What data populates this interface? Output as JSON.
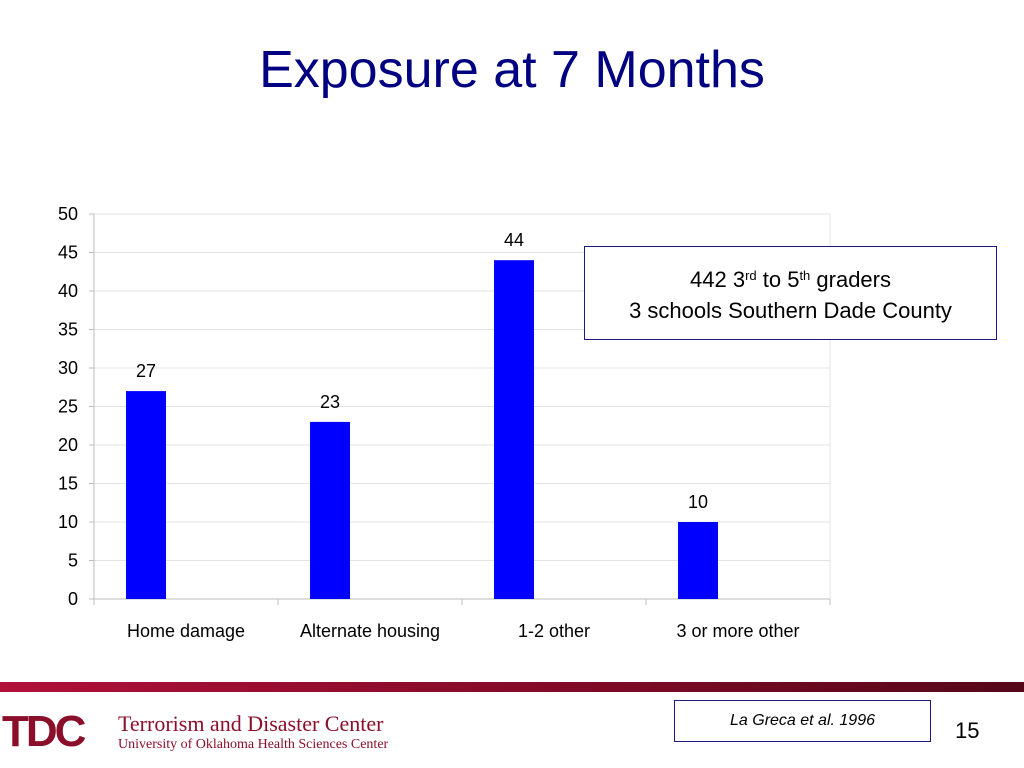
{
  "slide": {
    "title": "Exposure at 7 Months",
    "annotation": {
      "line1_num": "442 3",
      "line1_sup1": "rd",
      "line1_mid": " to 5",
      "line1_sup2": "th",
      "line1_end": " graders",
      "line2": "3 schools Southern Dade County"
    },
    "footer": {
      "logo_letters": "TDC",
      "org_name": "Terrorism and Disaster Center",
      "org_sub": "University of Oklahoma Health Sciences Center",
      "citation": "La Greca et al. 1996",
      "page_number": "15"
    },
    "colors": {
      "title": "#000080",
      "bar": "#0000ff",
      "footer": "#8b0f2a"
    }
  },
  "chart_data": {
    "type": "bar",
    "categories": [
      "Home damage",
      "Alternate housing",
      "1-2 other",
      "3 or more other"
    ],
    "values": [
      27,
      23,
      44,
      10
    ],
    "data_labels": [
      "27",
      "23",
      "44",
      "10"
    ],
    "ylim": [
      0,
      50
    ],
    "yticks": [
      "0",
      "5",
      "10",
      "15",
      "20",
      "25",
      "30",
      "35",
      "40",
      "45",
      "50"
    ],
    "grid": true,
    "legend": "none",
    "title": "",
    "xlabel": "",
    "ylabel": ""
  }
}
